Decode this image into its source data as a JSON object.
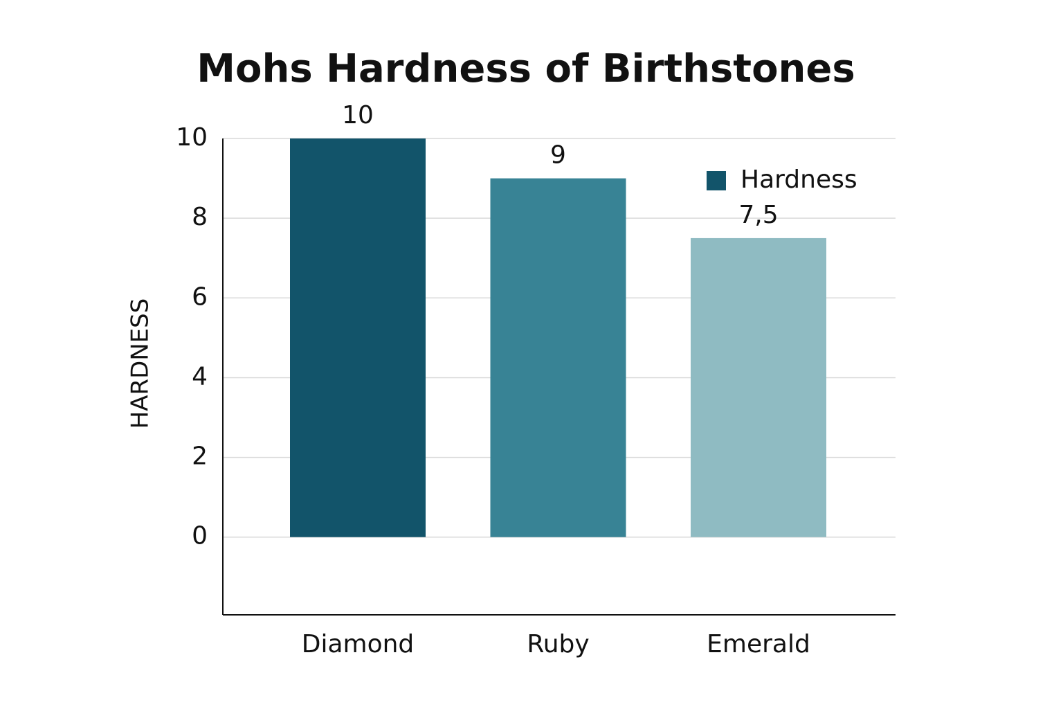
{
  "chart_data": {
    "type": "bar",
    "title": "Mohs Hardness of Birthstones",
    "y_label": "HARDNESS",
    "categories": [
      "Diamond",
      "Ruby",
      "Emerald"
    ],
    "series": [
      {
        "name": "Hardness",
        "color": "#12546a",
        "values": [
          10,
          9,
          7.5
        ],
        "value_labels": [
          "10",
          "9",
          "7,5"
        ]
      }
    ],
    "bar_colors": [
      "#12546a",
      "#388395",
      "#8fbbc2"
    ],
    "ylim": [
      -1.95,
      10
    ],
    "yticks": [
      0,
      2,
      4,
      6,
      8,
      10
    ],
    "grid": true,
    "legend": "upper right"
  }
}
